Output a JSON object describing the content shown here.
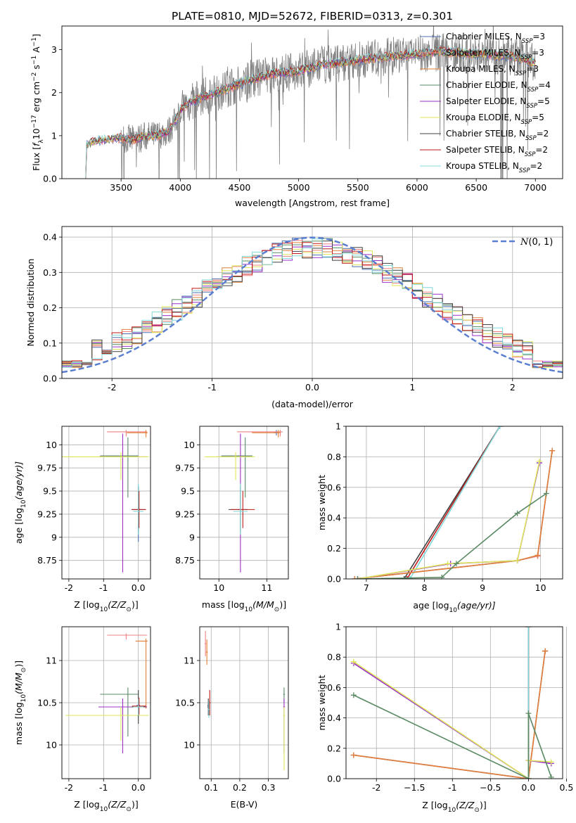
{
  "title": "PLATE=0810, MJD=52672, FIBERID=0313, z=0.301",
  "colors": {
    "Chabrier MILES": "#4c72b0",
    "Salpeter MILES": "#f08080",
    "Kroupa MILES": "#e0803a",
    "Chabrier ELODIE": "#5a8a64",
    "Salpeter ELODIE": "#9b30c8",
    "Kroupa ELODIE": "#dde65a",
    "Chabrier STELIB": "#404040",
    "Salpeter STELIB": "#c01818",
    "Kroupa STELIB": "#80d8d8",
    "data": "#808080",
    "gaussian": "#5b7fd0"
  },
  "chart_data": [
    {
      "type": "line",
      "id": "spectrum",
      "xlabel": "wavelength [Angstrom, rest frame]",
      "ylabel": "Flux [f_λ 10^-17 erg cm^-2 s^-1 A^-1]",
      "xlim": [
        3000,
        7230
      ],
      "ylim": [
        0,
        3.55
      ],
      "xticks": [
        3500,
        4000,
        4500,
        5000,
        5500,
        6000,
        6500,
        7000
      ],
      "yticks": [
        0,
        1,
        2,
        3
      ],
      "grid": false,
      "legend_position": "top-right",
      "continuum": [
        [
          3200,
          0.0
        ],
        [
          3210,
          0.8
        ],
        [
          3300,
          0.88
        ],
        [
          3400,
          0.92
        ],
        [
          3500,
          0.95
        ],
        [
          3600,
          0.9
        ],
        [
          3700,
          0.98
        ],
        [
          3800,
          1.0
        ],
        [
          3900,
          1.1
        ],
        [
          3950,
          1.3
        ],
        [
          4000,
          1.6
        ],
        [
          4100,
          1.8
        ],
        [
          4200,
          1.9
        ],
        [
          4300,
          2.0
        ],
        [
          4400,
          2.1
        ],
        [
          4500,
          2.2
        ],
        [
          4600,
          2.3
        ],
        [
          4800,
          2.45
        ],
        [
          5000,
          2.5
        ],
        [
          5200,
          2.65
        ],
        [
          5500,
          2.75
        ],
        [
          5800,
          2.85
        ],
        [
          6000,
          2.9
        ],
        [
          6200,
          2.95
        ],
        [
          6500,
          2.9
        ],
        [
          6800,
          2.85
        ],
        [
          7000,
          2.7
        ]
      ],
      "legend": [
        {
          "model": "Chabrier MILES",
          "n_ssp": "3"
        },
        {
          "model": "Salpeter MILES",
          "n_ssp": "3"
        },
        {
          "model": "Kroupa MILES",
          "n_ssp": "3"
        },
        {
          "model": "Chabrier ELODIE",
          "n_ssp": "4"
        },
        {
          "model": "Salpeter ELODIE",
          "n_ssp": "5"
        },
        {
          "model": "Kroupa ELODIE",
          "n_ssp": "5"
        },
        {
          "model": "Chabrier STELIB",
          "n_ssp": "2"
        },
        {
          "model": "Salpeter STELIB",
          "n_ssp": "2"
        },
        {
          "model": "Kroupa STELIB",
          "n_ssp": "2"
        }
      ]
    },
    {
      "type": "line",
      "id": "residuals",
      "xlabel": "(data-model)/error",
      "ylabel": "Normed distribution",
      "xlim": [
        -2.5,
        2.5
      ],
      "ylim": [
        0,
        0.43
      ],
      "xticks": [
        -2,
        -1,
        0,
        1,
        2
      ],
      "yticks": [
        0.0,
        0.1,
        0.2,
        0.3,
        0.4
      ],
      "grid": true,
      "legend_position": "top-right",
      "legend_label": "N(0,1)",
      "bin_width": 0.1
    },
    {
      "type": "scatter",
      "id": "age_vs_Z",
      "xlabel": "Z [log10(Z/Z⊙)]",
      "ylabel": "age  [log10(age/yr)]",
      "xlim": [
        -2.2,
        0.35
      ],
      "ylim": [
        8.55,
        10.2
      ],
      "xticks": [
        -2,
        -1,
        0
      ],
      "yticks": [
        8.75,
        9.0,
        9.25,
        9.5,
        9.75,
        10.0
      ],
      "grid": true,
      "points": [
        {
          "model": "Chabrier MILES",
          "x": 0.0,
          "xerr": [
            0.05,
            0.05
          ],
          "y": 9.3,
          "yerr": [
            0.35,
            0.25
          ]
        },
        {
          "model": "Salpeter MILES",
          "x": -0.35,
          "xerr": [
            0.55,
            0.6
          ],
          "y": 10.14,
          "yerr": [
            0.05,
            0.02
          ]
        },
        {
          "model": "Kroupa MILES",
          "x": 0.22,
          "xerr": [
            0.55,
            0.05
          ],
          "y": 10.13,
          "yerr": [
            0.05,
            0.03
          ]
        },
        {
          "model": "Chabrier ELODIE",
          "x": -0.3,
          "xerr": [
            0.8,
            0.3
          ],
          "y": 9.88,
          "yerr": [
            0.45,
            0.2
          ]
        },
        {
          "model": "Salpeter ELODIE",
          "x": -0.45,
          "xerr": [
            0.7,
            0.7
          ],
          "y": 9.87,
          "yerr": [
            1.25,
            0.25
          ]
        },
        {
          "model": "Kroupa ELODIE",
          "x": -0.5,
          "xerr": [
            1.7,
            0.8
          ],
          "y": 9.87,
          "yerr": [
            0.25,
            0.05
          ]
        },
        {
          "model": "Chabrier STELIB",
          "x": 0.0,
          "xerr": [
            0.2,
            0.2
          ],
          "y": 9.3,
          "yerr": [
            0.25,
            0.25
          ]
        },
        {
          "model": "Salpeter STELIB",
          "x": 0.02,
          "xerr": [
            0.2,
            0.2
          ],
          "y": 9.3,
          "yerr": [
            0.2,
            0.2
          ]
        },
        {
          "model": "Kroupa STELIB",
          "x": 0.0,
          "xerr": [
            0.15,
            0.15
          ],
          "y": 9.28,
          "yerr": [
            0.25,
            0.3
          ]
        }
      ]
    },
    {
      "type": "scatter",
      "id": "age_vs_mass",
      "xlabel": "mass [log10(M/M⊙)]",
      "ylabel": "",
      "xlim": [
        9.6,
        11.45
      ],
      "ylim": [
        8.55,
        10.2
      ],
      "xticks": [
        10,
        11
      ],
      "yticks": [
        8.75,
        9.0,
        9.25,
        9.5,
        9.75,
        10.0
      ],
      "grid": true,
      "points": [
        {
          "model": "Chabrier MILES",
          "x": 11.2,
          "xerr": [
            0.05,
            0.05
          ],
          "y": 10.13,
          "yerr": [
            0.03,
            0.03
          ]
        },
        {
          "model": "Salpeter MILES",
          "x": 11.28,
          "xerr": [
            0.9,
            0.05
          ],
          "y": 10.14,
          "yerr": [
            0.05,
            0.02
          ]
        },
        {
          "model": "Kroupa MILES",
          "x": 11.24,
          "xerr": [
            0.55,
            0.05
          ],
          "y": 10.13,
          "yerr": [
            0.05,
            0.03
          ]
        },
        {
          "model": "Chabrier ELODIE",
          "x": 10.55,
          "xerr": [
            0.5,
            0.15
          ],
          "y": 9.88,
          "yerr": [
            0.45,
            0.2
          ]
        },
        {
          "model": "Salpeter ELODIE",
          "x": 10.45,
          "xerr": [
            0.5,
            0.2
          ],
          "y": 9.87,
          "yerr": [
            1.25,
            0.25
          ]
        },
        {
          "model": "Kroupa ELODIE",
          "x": 10.35,
          "xerr": [
            0.65,
            0.4
          ],
          "y": 9.87,
          "yerr": [
            0.25,
            0.05
          ]
        },
        {
          "model": "Chabrier STELIB",
          "x": 10.45,
          "xerr": [
            0.25,
            0.15
          ],
          "y": 9.3,
          "yerr": [
            0.25,
            0.25
          ]
        },
        {
          "model": "Salpeter STELIB",
          "x": 10.5,
          "xerr": [
            0.25,
            0.25
          ],
          "y": 9.3,
          "yerr": [
            0.2,
            0.2
          ]
        },
        {
          "model": "Kroupa STELIB",
          "x": 10.45,
          "xerr": [
            0.15,
            0.15
          ],
          "y": 9.28,
          "yerr": [
            0.25,
            0.3
          ]
        }
      ]
    },
    {
      "type": "line",
      "id": "weight_vs_age",
      "xlabel": "age  [log10(age/yr)]",
      "ylabel": "mass weight",
      "xlim": [
        6.65,
        10.38
      ],
      "ylim": [
        0,
        1.0
      ],
      "xticks": [
        7,
        8,
        9,
        10
      ],
      "yticks": [
        0.0,
        0.2,
        0.4,
        0.6,
        0.8,
        1.0
      ],
      "grid": true,
      "series": [
        {
          "model": "Chabrier STELIB",
          "x": [
            7.65,
            9.3
          ],
          "y": [
            0.0,
            1.0
          ]
        },
        {
          "model": "Salpeter STELIB",
          "x": [
            7.7,
            9.3
          ],
          "y": [
            0.0,
            1.0
          ]
        },
        {
          "model": "Kroupa STELIB",
          "x": [
            7.75,
            9.3
          ],
          "y": [
            0.0,
            1.0
          ]
        },
        {
          "model": "Chabrier MILES",
          "x": [
            6.8,
            9.6,
            9.95,
            10.2
          ],
          "y": [
            0.0,
            0.12,
            0.15,
            0.84
          ]
        },
        {
          "model": "Salpeter MILES",
          "x": [
            6.8,
            9.6,
            9.95,
            10.2
          ],
          "y": [
            0.0,
            0.12,
            0.15,
            0.84
          ]
        },
        {
          "model": "Kroupa MILES",
          "x": [
            6.8,
            9.6,
            9.95,
            10.2
          ],
          "y": [
            0.0,
            0.12,
            0.155,
            0.84
          ]
        },
        {
          "model": "Salpeter ELODIE",
          "x": [
            6.85,
            8.45,
            9.6,
            9.98
          ],
          "y": [
            0.0,
            0.1,
            0.12,
            0.76
          ]
        },
        {
          "model": "Kroupa ELODIE",
          "x": [
            6.85,
            8.4,
            9.6,
            9.98
          ],
          "y": [
            0.0,
            0.1,
            0.12,
            0.77
          ]
        },
        {
          "model": "Chabrier ELODIE",
          "x": [
            6.85,
            8.3,
            8.55,
            9.6,
            10.1
          ],
          "y": [
            0.0,
            0.01,
            0.1,
            0.43,
            0.56
          ]
        }
      ]
    },
    {
      "type": "scatter",
      "id": "mass_vs_Z",
      "xlabel": "Z [log10(Z/Z⊙)]",
      "ylabel": "mass [log10(M/M⊙)]",
      "xlim": [
        -2.2,
        0.35
      ],
      "ylim": [
        9.6,
        11.4
      ],
      "xticks": [
        -2,
        -1,
        0
      ],
      "yticks": [
        10.0,
        10.5,
        11.0
      ],
      "grid": true,
      "points": [
        {
          "model": "Chabrier MILES",
          "x": 0.0,
          "xerr": [
            0.05,
            0.05
          ],
          "y": 10.47,
          "yerr": [
            0.02,
            0.02
          ]
        },
        {
          "model": "Salpeter MILES",
          "x": -0.35,
          "xerr": [
            0.55,
            0.6
          ],
          "y": 11.3,
          "yerr": [
            0.05,
            0.02
          ]
        },
        {
          "model": "Kroupa MILES",
          "x": 0.22,
          "xerr": [
            0.3,
            0.05
          ],
          "y": 11.23,
          "yerr": [
            0.8,
            0.03
          ]
        },
        {
          "model": "Chabrier ELODIE",
          "x": -0.3,
          "xerr": [
            0.8,
            0.3
          ],
          "y": 10.6,
          "yerr": [
            0.5,
            0.08
          ]
        },
        {
          "model": "Salpeter ELODIE",
          "x": -0.45,
          "xerr": [
            0.7,
            0.7
          ],
          "y": 10.45,
          "yerr": [
            0.55,
            0.1
          ]
        },
        {
          "model": "Kroupa ELODIE",
          "x": -0.5,
          "xerr": [
            1.6,
            0.8
          ],
          "y": 10.35,
          "yerr": [
            0.3,
            0.1
          ]
        },
        {
          "model": "Chabrier STELIB",
          "x": 0.0,
          "xerr": [
            0.2,
            0.2
          ],
          "y": 10.45,
          "yerr": [
            0.2,
            0.2
          ]
        },
        {
          "model": "Salpeter STELIB",
          "x": 0.02,
          "xerr": [
            0.2,
            0.2
          ],
          "y": 10.46,
          "yerr": [
            0.1,
            0.1
          ]
        },
        {
          "model": "Kroupa STELIB",
          "x": 0.0,
          "xerr": [
            0.15,
            0.15
          ],
          "y": 10.45,
          "yerr": [
            0.1,
            0.1
          ]
        }
      ]
    },
    {
      "type": "scatter",
      "id": "mass_vs_ebv",
      "xlabel": "E(B-V)",
      "ylabel": "",
      "xlim": [
        0.06,
        0.37
      ],
      "ylim": [
        9.6,
        11.4
      ],
      "xticks": [
        0.1,
        0.2,
        0.3
      ],
      "yticks": [
        10.0,
        10.5,
        11.0
      ],
      "grid": true,
      "points": [
        {
          "model": "Chabrier MILES",
          "x": 0.09,
          "xerr": [
            0.003,
            0.003
          ],
          "y": 10.47,
          "yerr": [
            0.02,
            0.02
          ]
        },
        {
          "model": "Salpeter MILES",
          "x": 0.08,
          "xerr": [
            0.003,
            0.003
          ],
          "y": 11.2,
          "yerr": [
            0.15,
            0.15
          ]
        },
        {
          "model": "Kroupa MILES",
          "x": 0.085,
          "xerr": [
            0.003,
            0.003
          ],
          "y": 11.1,
          "yerr": [
            0.15,
            0.15
          ]
        },
        {
          "model": "Chabrier ELODIE",
          "x": 0.355,
          "xerr": [
            0.003,
            0.003
          ],
          "y": 10.6,
          "yerr": [
            0.1,
            0.08
          ]
        },
        {
          "model": "Salpeter ELODIE",
          "x": 0.355,
          "xerr": [
            0.003,
            0.003
          ],
          "y": 10.45,
          "yerr": [
            0.55,
            0.1
          ]
        },
        {
          "model": "Kroupa ELODIE",
          "x": 0.355,
          "xerr": [
            0.003,
            0.003
          ],
          "y": 10.35,
          "yerr": [
            0.65,
            0.1
          ]
        },
        {
          "model": "Chabrier STELIB",
          "x": 0.09,
          "xerr": [
            0.003,
            0.003
          ],
          "y": 10.45,
          "yerr": [
            0.1,
            0.1
          ]
        },
        {
          "model": "Salpeter STELIB",
          "x": 0.095,
          "xerr": [
            0.003,
            0.003
          ],
          "y": 10.5,
          "yerr": [
            0.15,
            0.15
          ]
        },
        {
          "model": "Kroupa STELIB",
          "x": 0.092,
          "xerr": [
            0.003,
            0.003
          ],
          "y": 10.42,
          "yerr": [
            0.1,
            0.1
          ]
        }
      ]
    },
    {
      "type": "line",
      "id": "weight_vs_Z",
      "xlabel": "Z [log10(Z/Z⊙)]",
      "ylabel": "mass weight",
      "xlim": [
        -2.4,
        0.45
      ],
      "ylim": [
        0,
        1.0
      ],
      "xticks": [
        -2.0,
        -1.5,
        -1.0,
        -0.5,
        0.0,
        0.5
      ],
      "yticks": [
        0.0,
        0.2,
        0.4,
        0.6,
        0.8,
        1.0
      ],
      "grid": true,
      "series": [
        {
          "model": "Chabrier STELIB",
          "x": [
            0.0,
            0.0
          ],
          "y": [
            0.0,
            1.0
          ]
        },
        {
          "model": "Salpeter STELIB",
          "x": [
            0.0,
            0.0
          ],
          "y": [
            0.0,
            1.0
          ]
        },
        {
          "model": "Kroupa STELIB",
          "x": [
            0.0,
            0.0
          ],
          "y": [
            0.0,
            1.0
          ]
        },
        {
          "model": "Chabrier MILES",
          "x": [
            -2.3,
            0.0,
            0.22
          ],
          "y": [
            0.155,
            0.0,
            0.84
          ]
        },
        {
          "model": "Salpeter MILES",
          "x": [
            -2.3,
            0.0,
            0.22
          ],
          "y": [
            0.155,
            0.0,
            0.84
          ]
        },
        {
          "model": "Kroupa MILES",
          "x": [
            -2.3,
            0.0,
            0.22
          ],
          "y": [
            0.155,
            0.0,
            0.84
          ]
        },
        {
          "model": "Salpeter ELODIE",
          "x": [
            -2.3,
            0.0,
            0.0,
            0.3
          ],
          "y": [
            0.76,
            0.0,
            0.12,
            0.1
          ]
        },
        {
          "model": "Kroupa ELODIE",
          "x": [
            -2.3,
            0.0,
            0.0,
            0.3
          ],
          "y": [
            0.77,
            0.0,
            0.12,
            0.11
          ]
        },
        {
          "model": "Chabrier ELODIE",
          "x": [
            -2.3,
            0.0,
            0.0,
            0.3
          ],
          "y": [
            0.55,
            0.0,
            0.43,
            0.01
          ]
        }
      ]
    }
  ]
}
